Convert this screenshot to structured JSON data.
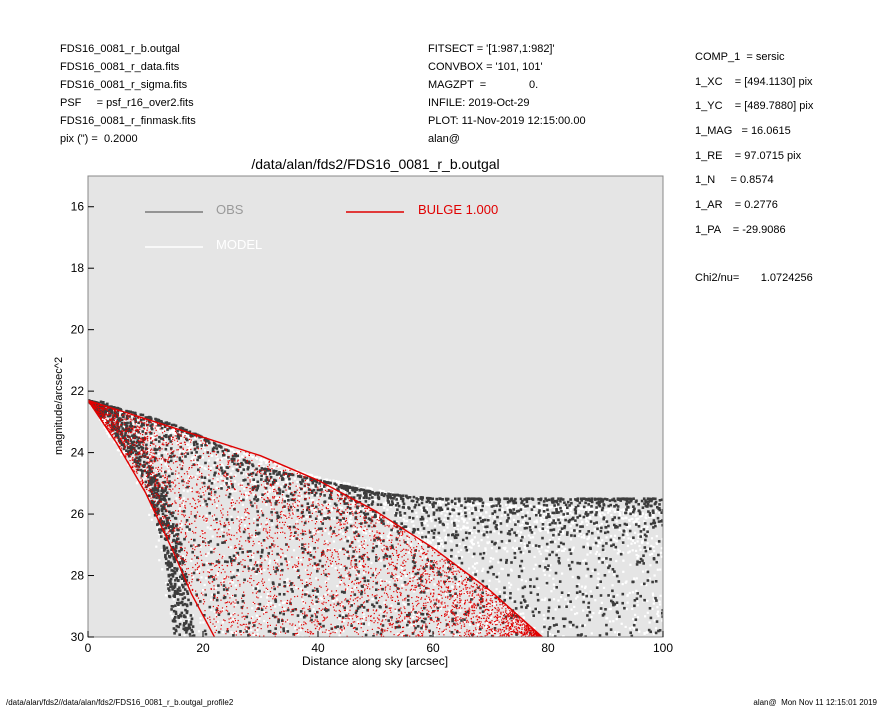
{
  "header_left": [
    "FDS16_0081_r_b.outgal",
    "FDS16_0081_r_data.fits",
    "FDS16_0081_r_sigma.fits",
    "PSF     = psf_r16_over2.fits",
    "FDS16_0081_r_finmask.fits",
    "pix (\") =  0.2000"
  ],
  "header_mid": [
    "FITSECT = '[1:987,1:982]'",
    "CONVBOX = '101, 101'",
    "MAGZPT  =              0.",
    "INFILE: 2019-Oct-29",
    "PLOT: 11-Nov-2019 12:15:00.00",
    "alan@"
  ],
  "params": [
    "COMP_1  = sersic",
    "1_XC    = [494.1130] pix",
    "1_YC    = [489.7880] pix",
    "1_MAG   = 16.0615",
    "1_RE    = 97.0715 pix",
    "1_N     = 0.8574",
    "1_AR    = 0.2776",
    "1_PA    = -29.9086"
  ],
  "chi2": "Chi2/nu=       1.0724256",
  "footer_left": "/data/alan/fds2//data/alan/fds2/FDS16_0081_r_b.outgal_profile2",
  "footer_right": "alan@  Mon Nov 11 12:15:01 2019",
  "colors": {
    "plot_bg": "#e5e5e5",
    "obs": "#3c3c3c",
    "model": "#ffffff",
    "bulge": "#e00000",
    "legend_obs_text": "#9a9a9a"
  },
  "chart_data": {
    "type": "scatter",
    "title": "/data/alan/fds2/FDS16_0081_r_b.outgal",
    "xlabel": "Distance along sky [arcsec]",
    "ylabel": "magnitude/arcsec^2",
    "xlim": [
      0,
      100
    ],
    "ylim": [
      30,
      15
    ],
    "y_inverted": true,
    "xticks": [
      0,
      20,
      40,
      60,
      80,
      100
    ],
    "yticks": [
      16,
      18,
      20,
      22,
      24,
      26,
      28,
      30
    ],
    "legend": [
      {
        "label": "OBS",
        "color": "#9a9a9a",
        "line_color": "#7a7a7a"
      },
      {
        "label": "MODEL",
        "color": "#ffffff",
        "line_color": "#ffffff"
      },
      {
        "label": "BULGE  1.000",
        "color": "#e00000",
        "line_color": "#e00000"
      }
    ],
    "series": [
      {
        "name": "OBS",
        "description": "observed isophote pixels",
        "upper_edge": [
          [
            0,
            22.3
          ],
          [
            10,
            22.8
          ],
          [
            15,
            23.1
          ],
          [
            20,
            23.5
          ],
          [
            25,
            24.0
          ],
          [
            30,
            24.5
          ],
          [
            40,
            24.9
          ],
          [
            50,
            25.3
          ],
          [
            60,
            25.5
          ],
          [
            70,
            25.5
          ],
          [
            80,
            25.5
          ],
          [
            90,
            25.5
          ],
          [
            100,
            25.5
          ]
        ],
        "lower_edge": [
          [
            0,
            22.3
          ],
          [
            5,
            23.5
          ],
          [
            10,
            25.0
          ],
          [
            13,
            27.0
          ],
          [
            15,
            30.0
          ]
        ],
        "floor_band": [
          25.3,
          30.0
        ]
      },
      {
        "name": "MODEL",
        "description": "model pixels (white)",
        "upper_edge": [
          [
            0,
            22.3
          ],
          [
            20,
            23.6
          ],
          [
            40,
            24.8
          ],
          [
            60,
            25.6
          ],
          [
            100,
            25.9
          ]
        ],
        "lower_edge": [
          [
            0,
            22.3
          ],
          [
            10,
            25.5
          ],
          [
            15,
            30.0
          ]
        ]
      },
      {
        "name": "BULGE  1.000",
        "description": "sersic component (red wedge)",
        "upper_edge": [
          [
            0,
            22.3
          ],
          [
            20,
            23.5
          ],
          [
            30,
            24.1
          ],
          [
            40,
            24.9
          ],
          [
            50,
            25.9
          ],
          [
            60,
            27.1
          ],
          [
            70,
            28.5
          ],
          [
            79,
            30.0
          ]
        ],
        "lower_edge": [
          [
            0,
            22.3
          ],
          [
            5,
            23.7
          ],
          [
            10,
            25.3
          ],
          [
            15,
            27.3
          ],
          [
            18,
            28.6
          ],
          [
            22,
            30.0
          ]
        ]
      }
    ]
  }
}
